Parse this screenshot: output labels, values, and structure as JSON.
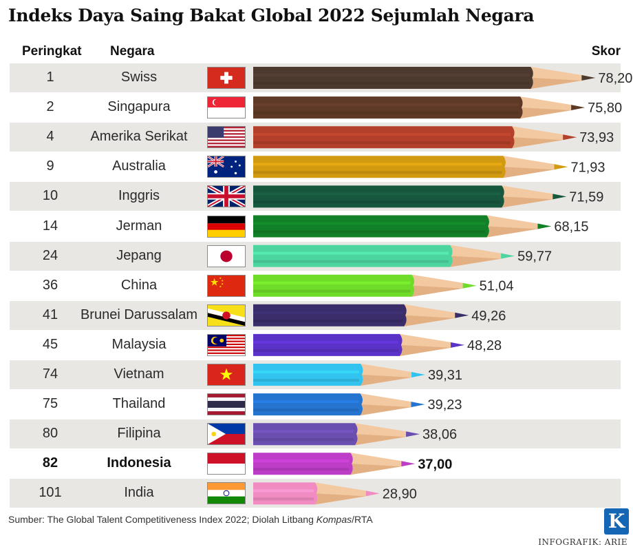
{
  "title": "Indeks Daya Saing Bakat Global 2022 Sejumlah Negara",
  "headers": {
    "rank": "Peringkat",
    "country": "Negara",
    "score": "Skor"
  },
  "chart_data": {
    "type": "bar",
    "title": "Indeks Daya Saing Bakat Global 2022 Sejumlah Negara",
    "xlabel": "",
    "ylabel": "Skor",
    "ranks": [
      "1",
      "2",
      "4",
      "9",
      "10",
      "14",
      "24",
      "36",
      "41",
      "45",
      "74",
      "75",
      "80",
      "82",
      "101"
    ],
    "categories": [
      "Swiss",
      "Singapura",
      "Amerika Serikat",
      "Australia",
      "Inggris",
      "Jerman",
      "Jepang",
      "China",
      "Brunei Darussalam",
      "Malaysia",
      "Vietnam",
      "Thailand",
      "Filipina",
      "Indonesia",
      "India"
    ],
    "values": [
      78.2,
      75.8,
      73.93,
      71.93,
      71.59,
      68.15,
      59.77,
      51.04,
      49.26,
      48.28,
      39.31,
      39.23,
      38.06,
      37.0,
      28.9
    ],
    "value_labels": [
      "78,20",
      "75,80",
      "73,93",
      "71,93",
      "71,59",
      "68,15",
      "59,77",
      "51,04",
      "49,26",
      "48,28",
      "39,31",
      "39,23",
      "38,06",
      "37,00",
      "28,90"
    ],
    "colors": [
      "#4d3a2e",
      "#5e3a26",
      "#b2402a",
      "#d19a10",
      "#17573e",
      "#128028",
      "#4dd5a0",
      "#6fdc2a",
      "#3a2d6a",
      "#5b32c8",
      "#32c3ee",
      "#2474d0",
      "#6a4fb0",
      "#bd3dc8",
      "#f18cc2"
    ],
    "highlight": "Indonesia"
  },
  "rows": [
    {
      "rank": "1",
      "country": "Swiss",
      "flag": "swiss-flag-icon"
    },
    {
      "rank": "2",
      "country": "Singapura",
      "flag": "singapore-flag-icon"
    },
    {
      "rank": "4",
      "country": "Amerika Serikat",
      "flag": "usa-flag-icon"
    },
    {
      "rank": "9",
      "country": "Australia",
      "flag": "australia-flag-icon"
    },
    {
      "rank": "10",
      "country": "Inggris",
      "flag": "uk-flag-icon"
    },
    {
      "rank": "14",
      "country": "Jerman",
      "flag": "germany-flag-icon"
    },
    {
      "rank": "24",
      "country": "Jepang",
      "flag": "japan-flag-icon"
    },
    {
      "rank": "36",
      "country": "China",
      "flag": "china-flag-icon"
    },
    {
      "rank": "41",
      "country": "Brunei Darussalam",
      "flag": "brunei-flag-icon"
    },
    {
      "rank": "45",
      "country": "Malaysia",
      "flag": "malaysia-flag-icon"
    },
    {
      "rank": "74",
      "country": "Vietnam",
      "flag": "vietnam-flag-icon"
    },
    {
      "rank": "75",
      "country": "Thailand",
      "flag": "thailand-flag-icon"
    },
    {
      "rank": "80",
      "country": "Filipina",
      "flag": "philippines-flag-icon"
    },
    {
      "rank": "82",
      "country": "Indonesia",
      "flag": "indonesia-flag-icon"
    },
    {
      "rank": "101",
      "country": "India",
      "flag": "india-flag-icon"
    }
  ],
  "source_prefix": "Sumber: The Global Talent Competitiveness Index 2022; Diolah Litbang ",
  "source_italic": "Kompas",
  "source_suffix": "/RTA",
  "credit": "INFOGRAFIK: ARIE",
  "logo_letter": "K",
  "logo": "kompas-logo-icon"
}
